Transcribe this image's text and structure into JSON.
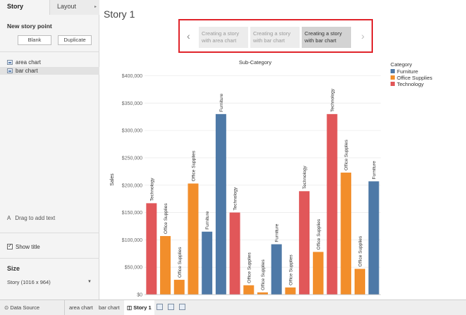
{
  "left_panel": {
    "tabs": [
      {
        "label": "Story"
      },
      {
        "label": "Layout"
      }
    ],
    "new_story_point": "New story point",
    "blank_label": "Blank",
    "duplicate_label": "Duplicate",
    "sheets": [
      {
        "label": "area chart"
      },
      {
        "label": "bar chart"
      }
    ],
    "drag_text": "Drag to add text",
    "show_title": "Show title",
    "size_title": "Size",
    "size_value": "Story (1016 x 964)"
  },
  "story": {
    "title": "Story 1",
    "points": [
      {
        "label": "Creating a story with area chart"
      },
      {
        "label": "Creating a story with bar chart"
      },
      {
        "label": "Creating a story with bar chart"
      }
    ]
  },
  "legend": {
    "title": "Category",
    "items": [
      {
        "label": "Furniture",
        "color": "#4e79a7"
      },
      {
        "label": "Office Supplies",
        "color": "#f28e2b"
      },
      {
        "label": "Technology",
        "color": "#e15759"
      }
    ]
  },
  "chart_data": {
    "type": "bar",
    "title": "Sub-Category",
    "ylabel": "Sales",
    "ylim": [
      0,
      420000
    ],
    "yticks": [
      "$0",
      "$50,000",
      "$100,000",
      "$150,000",
      "$200,000",
      "$250,000",
      "$300,000",
      "$350,000",
      "$400,000"
    ],
    "ytick_values": [
      0,
      50000,
      100000,
      150000,
      200000,
      250000,
      300000,
      350000,
      400000
    ],
    "colors": {
      "Furniture": "#4e79a7",
      "Office Supplies": "#f28e2b",
      "Technology": "#e15759"
    },
    "bars": [
      {
        "category": "Technology",
        "value": 167000
      },
      {
        "category": "Office Supplies",
        "value": 107000
      },
      {
        "category": "Office Supplies",
        "value": 27000
      },
      {
        "category": "Office Supplies",
        "value": 203000
      },
      {
        "category": "Furniture",
        "value": 115000
      },
      {
        "category": "Furniture",
        "value": 330000
      },
      {
        "category": "Technology",
        "value": 150000
      },
      {
        "category": "Office Supplies",
        "value": 17000
      },
      {
        "category": "Office Supplies",
        "value": 4000
      },
      {
        "category": "Furniture",
        "value": 92000
      },
      {
        "category": "Office Supplies",
        "value": 13000
      },
      {
        "category": "Technology",
        "value": 189000
      },
      {
        "category": "Office Supplies",
        "value": 78000
      },
      {
        "category": "Technology",
        "value": 330000
      },
      {
        "category": "Office Supplies",
        "value": 223000
      },
      {
        "category": "Office Supplies",
        "value": 47000
      },
      {
        "category": "Furniture",
        "value": 207000
      }
    ]
  },
  "bottom_bar": {
    "data_source": "Data Source",
    "tabs": [
      {
        "label": "area chart"
      },
      {
        "label": "bar chart"
      },
      {
        "label": "Story 1"
      }
    ]
  }
}
